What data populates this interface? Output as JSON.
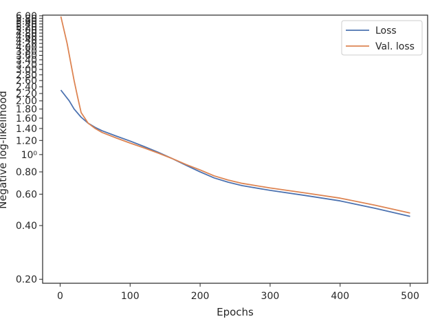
{
  "chart_data": {
    "type": "line",
    "title": "",
    "xlabel": "Epochs",
    "ylabel": "Negative log-likelihood",
    "y_scale": "log",
    "xlim": [
      -25,
      525
    ],
    "ylim": [
      0.19,
      6.05
    ],
    "grid": false,
    "legend_position": "top-right",
    "x_ticks": [
      0,
      100,
      200,
      300,
      400,
      500
    ],
    "x_tick_labels": [
      "0",
      "100",
      "200",
      "300",
      "400",
      "500"
    ],
    "y_ticks": [
      0.2,
      0.4,
      0.6,
      0.8,
      1.0,
      1.2,
      1.4,
      1.6,
      1.8,
      2.0,
      2.2,
      2.4,
      2.6,
      2.8,
      3.0,
      3.2,
      3.4,
      3.6,
      3.8,
      4.0,
      4.2,
      4.4,
      4.6,
      4.8,
      5.0,
      5.2,
      5.4,
      5.6,
      5.8,
      6.0
    ],
    "y_tick_labels": [
      "0.20",
      "0.40",
      "0.60",
      "0.80",
      "10⁰",
      "1.20",
      "1.40",
      "1.60",
      "1.80",
      "2.00",
      "2.20",
      "2.40",
      "2.60",
      "2.80",
      "3.00",
      "3.20",
      "3.40",
      "3.60",
      "3.80",
      "4.00",
      "4.20",
      "4.40",
      "4.60",
      "4.80",
      "5.00",
      "5.20",
      "5.40",
      "5.60",
      "5.80",
      "6.00"
    ],
    "series": [
      {
        "name": "Loss",
        "color": "#4c72b0",
        "x": [
          1,
          13,
          20,
          30,
          40,
          50,
          60,
          80,
          100,
          120,
          140,
          160,
          180,
          200,
          220,
          240,
          260,
          300,
          350,
          400,
          450,
          500
        ],
        "y": [
          2.3,
          2.0,
          1.8,
          1.62,
          1.5,
          1.42,
          1.36,
          1.27,
          1.19,
          1.11,
          1.03,
          0.95,
          0.87,
          0.8,
          0.74,
          0.7,
          0.67,
          0.63,
          0.59,
          0.55,
          0.5,
          0.45
        ]
      },
      {
        "name": "Val. loss",
        "color": "#dd8452",
        "x": [
          1,
          10,
          15,
          20,
          25,
          30,
          40,
          50,
          60,
          80,
          100,
          120,
          140,
          160,
          180,
          200,
          220,
          240,
          260,
          300,
          350,
          400,
          450,
          500
        ],
        "y": [
          5.95,
          4.2,
          3.3,
          2.6,
          2.1,
          1.72,
          1.5,
          1.4,
          1.33,
          1.24,
          1.16,
          1.09,
          1.02,
          0.95,
          0.88,
          0.82,
          0.76,
          0.72,
          0.69,
          0.65,
          0.61,
          0.57,
          0.52,
          0.47
        ]
      }
    ]
  }
}
